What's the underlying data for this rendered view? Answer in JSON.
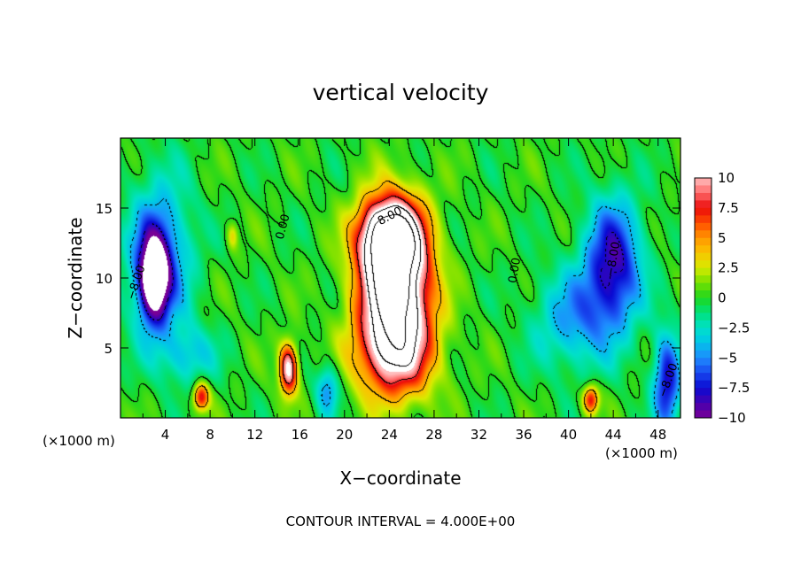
{
  "chart_data": {
    "type": "heatmap",
    "title": "vertical velocity",
    "xlabel": "X−coordinate",
    "ylabel": "Z−coordinate",
    "x_unit_left": "(×1000 m)",
    "x_unit_right": "(×1000 m)",
    "footer": "CONTOUR INTERVAL = 4.000E+00",
    "xlim": [
      0,
      50
    ],
    "ylim": [
      0,
      20
    ],
    "x_ticks": [
      4,
      8,
      12,
      16,
      20,
      24,
      28,
      32,
      36,
      40,
      44,
      48
    ],
    "x_tick_labels": [
      "4",
      "8",
      "12",
      "16",
      "20",
      "24",
      "28",
      "32",
      "36",
      "40",
      "44",
      "48"
    ],
    "y_ticks": [
      5,
      10,
      15
    ],
    "y_tick_labels": [
      "5",
      "10",
      "15"
    ],
    "colorbar": {
      "range": [
        -10,
        10
      ],
      "ticks": [
        10,
        7.5,
        5,
        2.5,
        0,
        -2.5,
        -5,
        -7.5,
        -10
      ],
      "tick_labels": [
        "10",
        "7.5",
        "5",
        "2.5",
        "0",
        "−2.5",
        "−5",
        "−7.5",
        "−10"
      ]
    },
    "contour_labels": [
      {
        "text": "8.00",
        "x": 24.2,
        "y": 14.2,
        "angle": -28
      },
      {
        "text": "0.00",
        "x": 14.8,
        "y": 13.6,
        "angle": -75
      },
      {
        "text": "0.00",
        "x": 35.5,
        "y": 10.5,
        "angle": -80
      },
      {
        "text": "−8.00",
        "x": 1.7,
        "y": 9.6,
        "angle": -72
      },
      {
        "text": "−8.00",
        "x": 44.3,
        "y": 11.3,
        "angle": -80
      },
      {
        "text": "−8.00",
        "x": 49.2,
        "y": 2.6,
        "angle": -70
      }
    ],
    "features": [
      {
        "type": "updraft",
        "x": 24.5,
        "z": 9.5,
        "peak": 18.0,
        "rx": 3.0,
        "rz": 5.0
      },
      {
        "type": "updraft",
        "x": 24.0,
        "z": 13.0,
        "peak": 14.0,
        "rx": 2.6,
        "rz": 2.5
      },
      {
        "type": "updraft",
        "x": 24.5,
        "z": 4.5,
        "peak": 8.0,
        "rx": 3.5,
        "rz": 3.2
      },
      {
        "type": "updraft",
        "x": 15.0,
        "z": 3.5,
        "peak": 11.5,
        "rx": 0.8,
        "rz": 1.8
      },
      {
        "type": "updraft",
        "x": 7.2,
        "z": 1.5,
        "peak": 8.0,
        "rx": 0.7,
        "rz": 1.0
      },
      {
        "type": "updraft",
        "x": 42.0,
        "z": 1.3,
        "peak": 8.0,
        "rx": 0.7,
        "rz": 1.0
      },
      {
        "type": "updraft",
        "x": 10.0,
        "z": 13.0,
        "peak": 3.0,
        "rx": 0.5,
        "rz": 1.0
      },
      {
        "type": "downdraft",
        "x": 3.0,
        "z": 10.0,
        "peak": -13.0,
        "rx": 1.3,
        "rz": 3.0
      },
      {
        "type": "downdraft",
        "x": 3.5,
        "z": 11.5,
        "peak": -6.0,
        "rx": 2.8,
        "rz": 5.5
      },
      {
        "type": "downdraft",
        "x": 44.0,
        "z": 11.0,
        "peak": -8.5,
        "rx": 2.5,
        "rz": 4.5
      },
      {
        "type": "downdraft",
        "x": 40.5,
        "z": 7.0,
        "peak": -4.5,
        "rx": 3.5,
        "rz": 3.5
      },
      {
        "type": "downdraft",
        "x": 48.8,
        "z": 2.5,
        "peak": -8.0,
        "rx": 1.2,
        "rz": 3.5
      },
      {
        "type": "downdraft",
        "x": 18.5,
        "z": 2.0,
        "peak": -5.0,
        "rx": 1.0,
        "rz": 1.8
      },
      {
        "type": "downdraft",
        "x": 6.0,
        "z": 4.5,
        "peak": -3.5,
        "rx": 2.5,
        "rz": 2.0
      }
    ]
  }
}
